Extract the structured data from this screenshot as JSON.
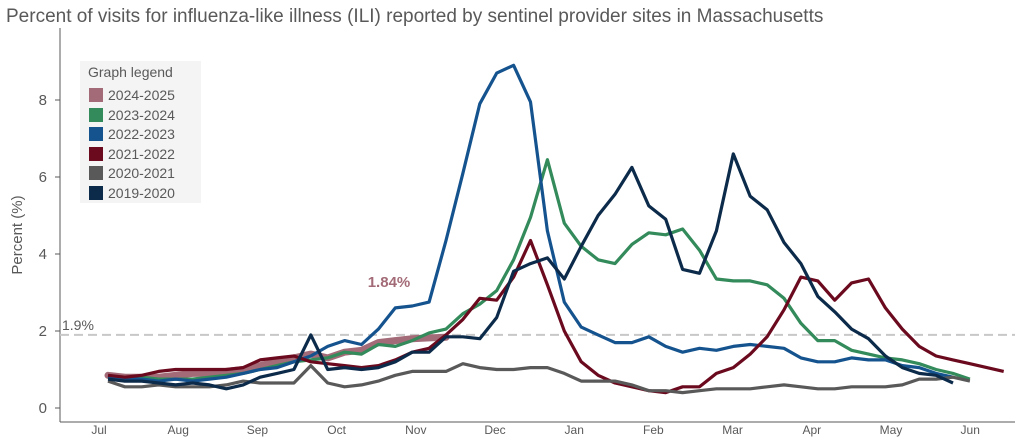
{
  "chart_data": {
    "type": "line",
    "title": "Percent of visits for influenza-like illness (ILI) reported by sentinel provider sites in Massachusetts",
    "xlabel": "",
    "ylabel": "Percent (%)",
    "ylim": [
      0,
      9.2
    ],
    "yticks": [
      0,
      2,
      4,
      6,
      8
    ],
    "xticks": [
      "Jul",
      "Aug",
      "Sep",
      "Oct",
      "Nov",
      "Dec",
      "Jan",
      "Feb",
      "Mar",
      "Apr",
      "May",
      "Jun"
    ],
    "x_unit": "week index (weekly points starting early July)",
    "grid": false,
    "legend": {
      "title": "Graph legend",
      "placement": "top-left"
    },
    "reference_line": {
      "value": 1.9,
      "label": "1.9%",
      "color": "#c8c8c8",
      "style": "dashed"
    },
    "annotation": {
      "text": "1.84%",
      "series": "2024-2025",
      "color": "#a36b77"
    },
    "series": [
      {
        "name": "2019-2020",
        "color": "#0c2a4a",
        "values": [
          0.75,
          0.7,
          0.7,
          0.65,
          0.6,
          0.65,
          0.6,
          0.5,
          0.6,
          0.8,
          0.9,
          1.0,
          1.9,
          1.0,
          1.05,
          1.0,
          1.05,
          1.2,
          1.45,
          1.45,
          1.85,
          1.85,
          1.8,
          2.35,
          3.55,
          3.75,
          3.9,
          3.35,
          4.2,
          5.0,
          5.55,
          6.25,
          5.25,
          4.9,
          3.6,
          3.5,
          4.6,
          6.6,
          5.5,
          5.15,
          4.3,
          3.75,
          2.9,
          2.5,
          2.05,
          1.8,
          1.35,
          1.05,
          0.9,
          0.85,
          0.65
        ]
      },
      {
        "name": "2020-2021",
        "color": "#595959",
        "values": [
          0.7,
          0.55,
          0.55,
          0.6,
          0.55,
          0.55,
          0.55,
          0.6,
          0.7,
          0.65,
          0.65,
          0.65,
          1.1,
          0.65,
          0.55,
          0.6,
          0.7,
          0.85,
          0.95,
          0.95,
          0.95,
          1.15,
          1.05,
          1.0,
          1.0,
          1.05,
          1.05,
          0.9,
          0.7,
          0.7,
          0.7,
          0.6,
          0.45,
          0.45,
          0.4,
          0.45,
          0.5,
          0.5,
          0.5,
          0.55,
          0.6,
          0.55,
          0.5,
          0.5,
          0.55,
          0.55,
          0.55,
          0.6,
          0.75,
          0.75,
          0.8,
          0.7
        ]
      },
      {
        "name": "2021-2022",
        "color": "#6b0a1e",
        "values": [
          0.85,
          0.8,
          0.85,
          0.95,
          1.0,
          1.0,
          1.0,
          1.0,
          1.05,
          1.25,
          1.3,
          1.35,
          1.2,
          1.15,
          1.1,
          1.05,
          1.1,
          1.25,
          1.45,
          1.55,
          1.9,
          2.3,
          2.85,
          2.8,
          3.4,
          4.35,
          3.2,
          2.0,
          1.2,
          0.85,
          0.65,
          0.55,
          0.45,
          0.4,
          0.55,
          0.55,
          0.9,
          1.05,
          1.4,
          1.85,
          2.55,
          3.4,
          3.3,
          2.8,
          3.25,
          3.35,
          2.6,
          2.05,
          1.6,
          1.35,
          1.25,
          1.15,
          1.05,
          0.95
        ]
      },
      {
        "name": "2022-2023",
        "color": "#15538f",
        "values": [
          0.8,
          0.75,
          0.75,
          0.7,
          0.75,
          0.7,
          0.75,
          0.8,
          0.9,
          1.0,
          1.05,
          1.2,
          1.35,
          1.6,
          1.75,
          1.65,
          2.05,
          2.6,
          2.65,
          2.75,
          4.35,
          6.1,
          7.9,
          8.7,
          8.9,
          7.95,
          4.6,
          2.75,
          2.1,
          1.9,
          1.7,
          1.7,
          1.85,
          1.6,
          1.45,
          1.55,
          1.5,
          1.6,
          1.65,
          1.6,
          1.55,
          1.3,
          1.2,
          1.2,
          1.3,
          1.25,
          1.25,
          1.1,
          1.05,
          0.9,
          0.8
        ]
      },
      {
        "name": "2023-2024",
        "color": "#338a5a",
        "values": [
          0.8,
          0.75,
          0.8,
          0.75,
          0.75,
          0.75,
          0.8,
          0.85,
          0.9,
          1.0,
          1.1,
          1.2,
          1.25,
          1.3,
          1.45,
          1.4,
          1.65,
          1.6,
          1.75,
          1.95,
          2.05,
          2.45,
          2.7,
          3.05,
          3.85,
          4.95,
          6.45,
          4.8,
          4.2,
          3.85,
          3.75,
          4.25,
          4.55,
          4.5,
          4.65,
          4.1,
          3.35,
          3.3,
          3.3,
          3.2,
          2.85,
          2.2,
          1.75,
          1.75,
          1.5,
          1.4,
          1.3,
          1.25,
          1.15,
          1.0,
          0.9,
          0.75
        ]
      },
      {
        "name": "2024-2025",
        "color": "#a36b77",
        "values": [
          0.85,
          0.8,
          0.8,
          0.8,
          0.85,
          0.9,
          0.9,
          0.95,
          1.0,
          1.1,
          1.2,
          1.3,
          1.4,
          1.3,
          1.45,
          1.5,
          1.7,
          1.75,
          1.8,
          1.82,
          1.84
        ]
      }
    ]
  }
}
